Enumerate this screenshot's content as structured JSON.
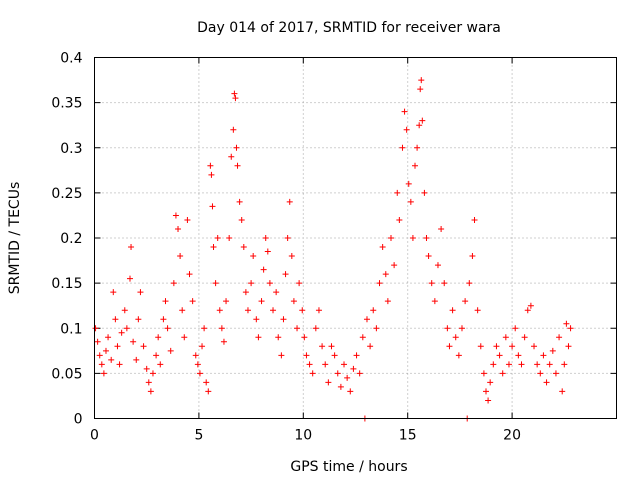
{
  "chart_data": {
    "type": "scatter",
    "title": "Day 014 of 2017, SRMTID for receiver wara",
    "xlabel": "GPS time / hours",
    "ylabel": "SRMTID / TECUs",
    "xlim": [
      0,
      25
    ],
    "ylim": [
      0,
      0.4
    ],
    "x_ticks": [
      0,
      5,
      10,
      15,
      20
    ],
    "x_tick_labels": [
      "0",
      "5",
      "10",
      "15",
      "20"
    ],
    "y_ticks": [
      0,
      0.05,
      0.1,
      0.15,
      0.2,
      0.25,
      0.3,
      0.35,
      0.4
    ],
    "y_tick_labels": [
      "0",
      "0.05",
      "0.1",
      "0.15",
      "0.2",
      "0.25",
      "0.3",
      "0.35",
      "0.4"
    ],
    "grid": true,
    "marker": "+",
    "color": "#ff0000",
    "series": [
      {
        "name": "SRMTID",
        "points": [
          [
            0.05,
            0.1
          ],
          [
            0.15,
            0.085
          ],
          [
            0.25,
            0.07
          ],
          [
            0.35,
            0.06
          ],
          [
            0.45,
            0.05
          ],
          [
            0.55,
            0.075
          ],
          [
            0.65,
            0.09
          ],
          [
            0.8,
            0.065
          ],
          [
            0.9,
            0.14
          ],
          [
            1.0,
            0.11
          ],
          [
            1.1,
            0.08
          ],
          [
            1.2,
            0.06
          ],
          [
            1.3,
            0.095
          ],
          [
            1.45,
            0.12
          ],
          [
            1.55,
            0.1
          ],
          [
            1.7,
            0.155
          ],
          [
            1.75,
            0.19
          ],
          [
            1.85,
            0.085
          ],
          [
            2.0,
            0.065
          ],
          [
            2.1,
            0.11
          ],
          [
            2.2,
            0.14
          ],
          [
            2.35,
            0.08
          ],
          [
            2.5,
            0.055
          ],
          [
            2.6,
            0.04
          ],
          [
            2.7,
            0.03
          ],
          [
            2.8,
            0.05
          ],
          [
            2.95,
            0.07
          ],
          [
            3.05,
            0.09
          ],
          [
            3.15,
            0.06
          ],
          [
            3.3,
            0.11
          ],
          [
            3.4,
            0.13
          ],
          [
            3.5,
            0.1
          ],
          [
            3.65,
            0.075
          ],
          [
            3.8,
            0.15
          ],
          [
            3.9,
            0.225
          ],
          [
            4.0,
            0.21
          ],
          [
            4.1,
            0.18
          ],
          [
            4.2,
            0.12
          ],
          [
            4.3,
            0.09
          ],
          [
            4.45,
            0.22
          ],
          [
            4.55,
            0.16
          ],
          [
            4.7,
            0.13
          ],
          [
            4.85,
            0.07
          ],
          [
            4.95,
            0.06
          ],
          [
            5.05,
            0.05
          ],
          [
            5.15,
            0.08
          ],
          [
            5.25,
            0.1
          ],
          [
            5.35,
            0.04
          ],
          [
            5.45,
            0.03
          ],
          [
            5.55,
            0.28
          ],
          [
            5.6,
            0.27
          ],
          [
            5.65,
            0.235
          ],
          [
            5.7,
            0.19
          ],
          [
            5.8,
            0.15
          ],
          [
            5.9,
            0.2
          ],
          [
            6.0,
            0.12
          ],
          [
            6.1,
            0.1
          ],
          [
            6.2,
            0.085
          ],
          [
            6.3,
            0.13
          ],
          [
            6.45,
            0.2
          ],
          [
            6.55,
            0.29
          ],
          [
            6.65,
            0.32
          ],
          [
            6.7,
            0.36
          ],
          [
            6.75,
            0.355
          ],
          [
            6.8,
            0.3
          ],
          [
            6.85,
            0.28
          ],
          [
            6.95,
            0.24
          ],
          [
            7.05,
            0.22
          ],
          [
            7.15,
            0.19
          ],
          [
            7.25,
            0.14
          ],
          [
            7.35,
            0.12
          ],
          [
            7.5,
            0.15
          ],
          [
            7.6,
            0.18
          ],
          [
            7.75,
            0.11
          ],
          [
            7.85,
            0.09
          ],
          [
            8.0,
            0.13
          ],
          [
            8.1,
            0.165
          ],
          [
            8.2,
            0.2
          ],
          [
            8.3,
            0.185
          ],
          [
            8.4,
            0.15
          ],
          [
            8.55,
            0.12
          ],
          [
            8.7,
            0.14
          ],
          [
            8.8,
            0.09
          ],
          [
            8.95,
            0.07
          ],
          [
            9.05,
            0.11
          ],
          [
            9.15,
            0.16
          ],
          [
            9.25,
            0.2
          ],
          [
            9.35,
            0.24
          ],
          [
            9.45,
            0.18
          ],
          [
            9.55,
            0.13
          ],
          [
            9.7,
            0.1
          ],
          [
            9.8,
            0.15
          ],
          [
            9.95,
            0.12
          ],
          [
            10.05,
            0.09
          ],
          [
            10.15,
            0.07
          ],
          [
            10.3,
            0.06
          ],
          [
            10.45,
            0.05
          ],
          [
            10.6,
            0.1
          ],
          [
            10.75,
            0.12
          ],
          [
            10.9,
            0.08
          ],
          [
            11.05,
            0.06
          ],
          [
            11.2,
            0.04
          ],
          [
            11.35,
            0.08
          ],
          [
            11.5,
            0.07
          ],
          [
            11.65,
            0.05
          ],
          [
            11.8,
            0.035
          ],
          [
            11.95,
            0.06
          ],
          [
            12.1,
            0.045
          ],
          [
            12.25,
            0.03
          ],
          [
            12.4,
            0.055
          ],
          [
            12.55,
            0.07
          ],
          [
            12.7,
            0.05
          ],
          [
            12.85,
            0.09
          ],
          [
            12.95,
            0.0
          ],
          [
            13.05,
            0.11
          ],
          [
            13.2,
            0.08
          ],
          [
            13.35,
            0.12
          ],
          [
            13.5,
            0.1
          ],
          [
            13.65,
            0.15
          ],
          [
            13.8,
            0.19
          ],
          [
            13.95,
            0.16
          ],
          [
            14.05,
            0.13
          ],
          [
            14.2,
            0.2
          ],
          [
            14.35,
            0.17
          ],
          [
            14.5,
            0.25
          ],
          [
            14.6,
            0.22
          ],
          [
            14.75,
            0.3
          ],
          [
            14.85,
            0.34
          ],
          [
            14.95,
            0.32
          ],
          [
            15.05,
            0.26
          ],
          [
            15.15,
            0.24
          ],
          [
            15.25,
            0.2
          ],
          [
            15.35,
            0.28
          ],
          [
            15.45,
            0.3
          ],
          [
            15.55,
            0.325
          ],
          [
            15.6,
            0.365
          ],
          [
            15.65,
            0.375
          ],
          [
            15.7,
            0.33
          ],
          [
            15.8,
            0.25
          ],
          [
            15.9,
            0.2
          ],
          [
            16.0,
            0.18
          ],
          [
            16.15,
            0.15
          ],
          [
            16.3,
            0.13
          ],
          [
            16.45,
            0.17
          ],
          [
            16.6,
            0.21
          ],
          [
            16.75,
            0.15
          ],
          [
            16.9,
            0.1
          ],
          [
            17.0,
            0.08
          ],
          [
            17.15,
            0.12
          ],
          [
            17.3,
            0.09
          ],
          [
            17.45,
            0.07
          ],
          [
            17.6,
            0.1
          ],
          [
            17.75,
            0.13
          ],
          [
            17.85,
            0.0
          ],
          [
            17.95,
            0.15
          ],
          [
            18.1,
            0.18
          ],
          [
            18.2,
            0.22
          ],
          [
            18.35,
            0.12
          ],
          [
            18.5,
            0.08
          ],
          [
            18.65,
            0.05
          ],
          [
            18.75,
            0.03
          ],
          [
            18.85,
            0.02
          ],
          [
            18.95,
            0.04
          ],
          [
            19.1,
            0.06
          ],
          [
            19.25,
            0.08
          ],
          [
            19.4,
            0.07
          ],
          [
            19.55,
            0.05
          ],
          [
            19.7,
            0.09
          ],
          [
            19.85,
            0.06
          ],
          [
            20.0,
            0.08
          ],
          [
            20.15,
            0.1
          ],
          [
            20.3,
            0.07
          ],
          [
            20.45,
            0.06
          ],
          [
            20.6,
            0.09
          ],
          [
            20.75,
            0.12
          ],
          [
            20.9,
            0.125
          ],
          [
            21.05,
            0.08
          ],
          [
            21.2,
            0.06
          ],
          [
            21.35,
            0.05
          ],
          [
            21.5,
            0.07
          ],
          [
            21.65,
            0.04
          ],
          [
            21.8,
            0.06
          ],
          [
            21.95,
            0.075
          ],
          [
            22.1,
            0.05
          ],
          [
            22.25,
            0.09
          ],
          [
            22.4,
            0.03
          ],
          [
            22.5,
            0.06
          ],
          [
            22.6,
            0.105
          ],
          [
            22.7,
            0.08
          ],
          [
            22.8,
            0.1
          ]
        ]
      }
    ]
  }
}
